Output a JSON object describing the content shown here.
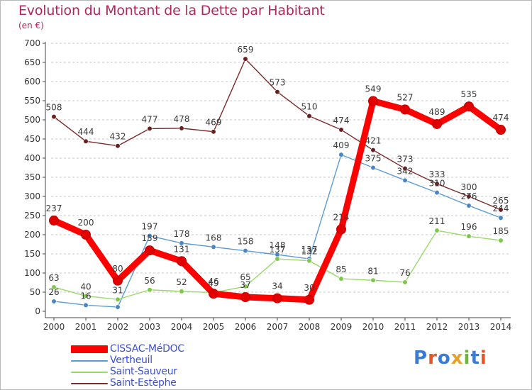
{
  "header": {
    "title": "Evolution du Montant de la Dette par Habitant",
    "subtitle": "(en €)"
  },
  "logo": {
    "text": "Proxiti",
    "letter_colors": [
      "#3a7bd5",
      "#e8542a",
      "#3a7bd5",
      "#e7a12a",
      "#6db33f",
      "#3a7bd5",
      "#e8542a"
    ]
  },
  "chart_data": {
    "type": "line",
    "title": "Evolution du Montant de la Dette par Habitant",
    "subtitle": "(en €)",
    "x": [
      "2000",
      "2001",
      "2002",
      "2003",
      "2004",
      "2005",
      "2006",
      "2007",
      "2008",
      "2009",
      "2010",
      "2011",
      "2012",
      "2013",
      "2014"
    ],
    "ylim": [
      0,
      700
    ],
    "yticks": [
      0,
      50,
      100,
      150,
      200,
      250,
      300,
      350,
      400,
      450,
      500,
      550,
      600,
      650,
      700
    ],
    "grid": "horizontal dashed",
    "legend_position": "bottom-left",
    "series": [
      {
        "name": "CISSAC-MéDOC",
        "color": "#ff0000",
        "marker_color": "#e00000",
        "values": [
          237,
          200,
          80,
          159,
          131,
          46,
          37,
          34,
          30,
          214,
          549,
          527,
          489,
          535,
          474
        ],
        "labels": [
          "237",
          "200",
          "80",
          "159",
          "131",
          "46",
          "37",
          "34",
          "30",
          "214",
          "549",
          "527",
          "489",
          "535",
          "474"
        ],
        "emphasis": "thick"
      },
      {
        "name": "Vertheuil",
        "color": "#5b9bd5",
        "marker_color": "#4a86c5",
        "values": [
          26,
          16,
          11,
          197,
          178,
          168,
          158,
          148,
          137,
          409,
          375,
          342,
          310,
          276,
          244
        ],
        "labels": [
          "26",
          "16",
          "",
          "197",
          "178",
          "168",
          "158",
          "148",
          "137",
          "409",
          "375",
          "342",
          "310",
          "276",
          "244"
        ],
        "emphasis": "thin"
      },
      {
        "name": "Saint-Sauveur",
        "color": "#9ad86a",
        "marker_color": "#7fc94a",
        "values": [
          63,
          40,
          31,
          56,
          52,
          49,
          65,
          137,
          132,
          85,
          81,
          76,
          211,
          196,
          185
        ],
        "labels": [
          "63",
          "40",
          "31",
          "56",
          "52",
          "49",
          "65",
          "137",
          "132",
          "85",
          "81",
          "76",
          "211",
          "196",
          "185"
        ],
        "emphasis": "thin"
      },
      {
        "name": "Saint-Estèphe",
        "color": "#7b2a2a",
        "marker_color": "#6a1f1f",
        "values": [
          508,
          444,
          432,
          477,
          478,
          469,
          659,
          573,
          510,
          474,
          421,
          373,
          333,
          300,
          265
        ],
        "labels": [
          "508",
          "444",
          "432",
          "477",
          "478",
          "469",
          "659",
          "573",
          "510",
          "474",
          "421",
          "373",
          "333",
          "300",
          "265"
        ],
        "emphasis": "thin"
      }
    ]
  }
}
